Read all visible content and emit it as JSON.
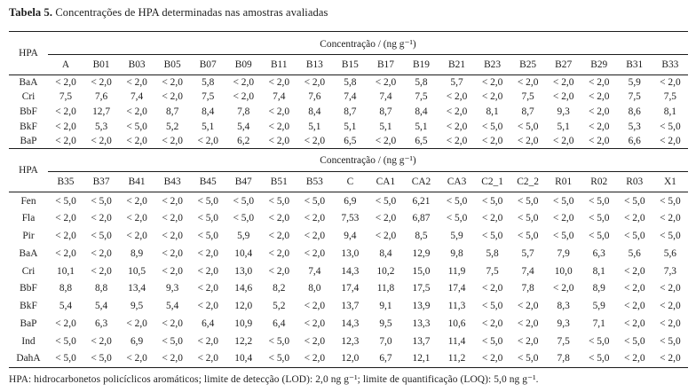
{
  "title": {
    "label": "Tabela 5.",
    "text": "Concentrações de HPA determinadas nas amostras avaliadas"
  },
  "table1": {
    "hpa_header": "HPA",
    "conc_header": "Concentração / (ng g⁻¹)",
    "columns": [
      "A",
      "B01",
      "B03",
      "B05",
      "B07",
      "B09",
      "B11",
      "B13",
      "B15",
      "B17",
      "B19",
      "B21",
      "B23",
      "B25",
      "B27",
      "B29",
      "B31",
      "B33"
    ],
    "rows": [
      {
        "name": "BaA",
        "values": [
          "< 2,0",
          "< 2,0",
          "< 2,0",
          "< 2,0",
          "5,8",
          "< 2,0",
          "< 2,0",
          "< 2,0",
          "5,8",
          "< 2,0",
          "5,8",
          "5,7",
          "< 2,0",
          "< 2,0",
          "< 2,0",
          "< 2,0",
          "5,9",
          "< 2,0"
        ]
      },
      {
        "name": "Cri",
        "values": [
          "7,5",
          "7,6",
          "7,4",
          "< 2,0",
          "7,5",
          "< 2,0",
          "7,4",
          "7,6",
          "7,4",
          "7,4",
          "7,5",
          "< 2,0",
          "< 2,0",
          "7,5",
          "< 2,0",
          "< 2,0",
          "7,5",
          "7,5"
        ]
      },
      {
        "name": "BbF",
        "values": [
          "< 2,0",
          "12,7",
          "< 2,0",
          "8,7",
          "8,4",
          "7,8",
          "< 2,0",
          "8,4",
          "8,7",
          "8,7",
          "8,4",
          "< 2,0",
          "8,1",
          "8,7",
          "9,3",
          "< 2,0",
          "8,6",
          "8,1"
        ]
      },
      {
        "name": "BkF",
        "values": [
          "< 2,0",
          "5,3",
          "< 5,0",
          "5,2",
          "5,1",
          "5,4",
          "< 2,0",
          "5,1",
          "5,1",
          "5,1",
          "5,1",
          "< 2,0",
          "< 5,0",
          "< 5,0",
          "5,1",
          "< 2,0",
          "5,3",
          "< 5,0"
        ]
      },
      {
        "name": "BaP",
        "values": [
          "< 2,0",
          "< 2,0",
          "< 2,0",
          "< 2,0",
          "< 2,0",
          "6,2",
          "< 2,0",
          "< 2,0",
          "6,5",
          "< 2,0",
          "6,5",
          "< 2,0",
          "< 2,0",
          "< 2,0",
          "< 2,0",
          "< 2,0",
          "6,6",
          "< 2,0"
        ]
      }
    ]
  },
  "table2": {
    "hpa_header": "HPA",
    "conc_header": "Concentração / (ng g⁻¹)",
    "columns": [
      "B35",
      "B37",
      "B41",
      "B43",
      "B45",
      "B47",
      "B51",
      "B53",
      "C",
      "CA1",
      "CA2",
      "CA3",
      "C2_1",
      "C2_2",
      "R01",
      "R02",
      "R03",
      "X1"
    ],
    "rows": [
      {
        "name": "Fen",
        "values": [
          "< 5,0",
          "< 5,0",
          "< 2,0",
          "< 2,0",
          "< 5,0",
          "< 5,0",
          "< 5,0",
          "< 5,0",
          "6,9",
          "< 5,0",
          "6,21",
          "< 5,0",
          "< 5,0",
          "< 5,0",
          "< 5,0",
          "< 5,0",
          "< 5,0",
          "< 5,0"
        ]
      },
      {
        "name": "Fla",
        "values": [
          "< 2,0",
          "< 2,0",
          "< 2,0",
          "< 2,0",
          "< 5,0",
          "< 5,0",
          "< 2,0",
          "< 2,0",
          "7,53",
          "< 2,0",
          "6,87",
          "< 5,0",
          "< 2,0",
          "< 5,0",
          "< 2,0",
          "< 5,0",
          "< 2,0",
          "< 2,0"
        ]
      },
      {
        "name": "Pir",
        "values": [
          "< 2,0",
          "< 5,0",
          "< 2,0",
          "< 2,0",
          "< 5,0",
          "5,9",
          "< 2,0",
          "< 2,0",
          "9,4",
          "< 2,0",
          "8,5",
          "5,9",
          "< 5,0",
          "< 5,0",
          "< 5,0",
          "< 5,0",
          "< 5,0",
          "< 5,0"
        ]
      },
      {
        "name": "BaA",
        "values": [
          "< 2,0",
          "< 2,0",
          "8,9",
          "< 2,0",
          "< 2,0",
          "10,4",
          "< 2,0",
          "< 2,0",
          "13,0",
          "8,4",
          "12,9",
          "9,8",
          "5,8",
          "5,7",
          "7,9",
          "6,3",
          "5,6",
          "5,6"
        ]
      },
      {
        "name": "Cri",
        "values": [
          "10,1",
          "< 2,0",
          "10,5",
          "< 2,0",
          "< 2,0",
          "13,0",
          "< 2,0",
          "7,4",
          "14,3",
          "10,2",
          "15,0",
          "11,9",
          "7,5",
          "7,4",
          "10,0",
          "8,1",
          "< 2,0",
          "7,3"
        ]
      },
      {
        "name": "BbF",
        "values": [
          "8,8",
          "8,8",
          "13,4",
          "9,3",
          "< 2,0",
          "14,6",
          "8,2",
          "8,0",
          "17,4",
          "11,8",
          "17,5",
          "17,4",
          "< 2,0",
          "7,8",
          "< 2,0",
          "8,9",
          "< 2,0",
          "< 2,0"
        ]
      },
      {
        "name": "BkF",
        "values": [
          "5,4",
          "5,4",
          "9,5",
          "5,4",
          "< 2,0",
          "12,0",
          "5,2",
          "< 2,0",
          "13,7",
          "9,1",
          "13,9",
          "11,3",
          "< 5,0",
          "< 2,0",
          "8,3",
          "5,9",
          "< 2,0",
          "< 2,0"
        ]
      },
      {
        "name": "BaP",
        "values": [
          "< 2,0",
          "6,3",
          "< 2,0",
          "< 2,0",
          "6,4",
          "10,9",
          "6,4",
          "< 2,0",
          "14,3",
          "9,5",
          "13,3",
          "10,6",
          "< 2,0",
          "< 2,0",
          "9,3",
          "7,1",
          "< 2,0",
          "< 2,0"
        ]
      },
      {
        "name": "Ind",
        "values": [
          "< 5,0",
          "< 2,0",
          "6,9",
          "< 5,0",
          "< 2,0",
          "12,2",
          "< 5,0",
          "< 2,0",
          "12,3",
          "7,0",
          "13,7",
          "11,4",
          "< 5,0",
          "< 2,0",
          "7,5",
          "< 5,0",
          "< 5,0",
          "< 5,0"
        ]
      },
      {
        "name": "DahA",
        "values": [
          "< 5,0",
          "< 5,0",
          "< 2,0",
          "< 2,0",
          "< 2,0",
          "10,4",
          "< 5,0",
          "< 2,0",
          "12,0",
          "6,7",
          "12,1",
          "11,2",
          "< 2,0",
          "< 5,0",
          "7,8",
          "< 5,0",
          "< 2,0",
          "< 2,0"
        ]
      }
    ]
  },
  "footnote": "HPA: hidrocarbonetos policíclicos aromáticos; limite de detecção (LOD): 2,0 ng g⁻¹; limite de quantificação (LOQ): 5,0 ng g⁻¹."
}
